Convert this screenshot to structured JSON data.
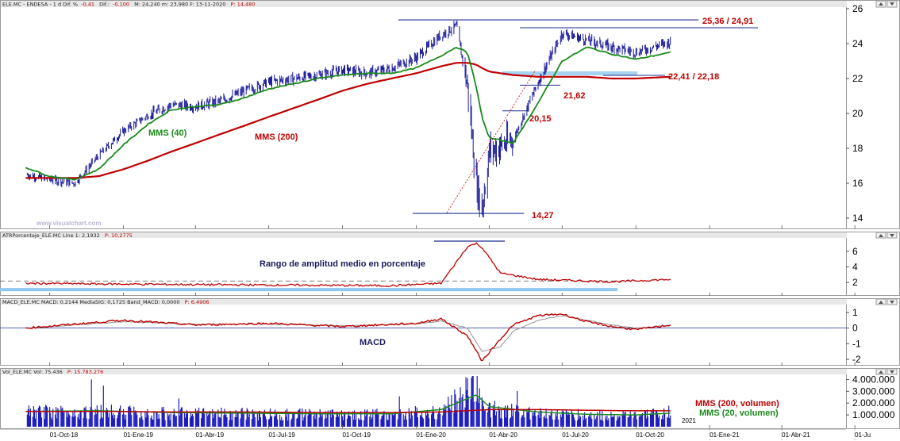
{
  "colors": {
    "background": "#ffffff",
    "grid_dash": "#c8c8d8",
    "price_bars": "#1f1f9f",
    "sma40": "#1a8a1a",
    "sma200": "#c00000",
    "annot_red": "#c00000",
    "annot_green": "#1a8a1a",
    "annot_navy": "#1a1a5e",
    "level_line": "#1f2f8f",
    "zone_fill": "#8ec8ef",
    "volume_bars": "#1f1fbf",
    "header_bg": "#e8e8e8",
    "panel_border": "#9a9a9a"
  },
  "icons": {
    "scroll_up": "scroll-up-icon",
    "scroll_down": "scroll-down-icon"
  },
  "headers": {
    "price": {
      "prefix": "ELE.MC - ENDESA - 1 d  Dif. %",
      "diff_pct": "-0,41",
      "diff_label": "Dif.:",
      "diff": "-0,100",
      "ohlc": "M: 24,240  m: 23,980  F: 13-11-2020",
      "p_label": "P: 14,480"
    },
    "atr": {
      "prefix": "ATRPorcentaje_ELE.MC  Line 1: 2,1932",
      "red": "P: 10,2775"
    },
    "macd": {
      "prefix": "MACD_ELE.MC  MACD: 0,2144  MediaSIG: 0,1725  Band_MACD: 0,0000",
      "red": "P: 6,4906"
    },
    "volume": {
      "prefix": "Vol_ELE.MC  Vol: 75.436",
      "red": "P: 15.783.276"
    }
  },
  "annotations": {
    "sma40": "MMS (40)",
    "sma200": "MMS (200)",
    "resistance": "25,36 / 24,91",
    "support_zone": "22,41 / 22,18",
    "level_2162": "21,62",
    "level_2015": "20,15",
    "low_1427": "14,27",
    "watermark": "www.visualchart.com",
    "atr_title": "Rango de amplitud medio en porcentaje",
    "macd_title": "MACD",
    "vol_sma200": "MMS (200, volumen)",
    "vol_sma20": "MMS (20, volumen)",
    "year_marker": "2021"
  },
  "chart_data": [
    {
      "type": "line",
      "panel": "price",
      "subtype": "ohlc_bars",
      "title": "ELE.MC - ENDESA - 1 d",
      "x_ticks": [
        "01-Oct-18",
        "01-Ene-19",
        "01-Abr-19",
        "01-Jul-19",
        "01-Oct-19",
        "01-Ene-20",
        "01-Abr-20",
        "01-Jul-20",
        "01-Oct-20",
        "01-Ene-21",
        "01-Abr-21",
        "01-Ju"
      ],
      "y_ticks": [
        14,
        16,
        18,
        20,
        22,
        24,
        26
      ],
      "ylim": [
        13.5,
        26.0
      ],
      "x": [
        "2018-09",
        "2018-10",
        "2018-11",
        "2018-12",
        "2019-01",
        "2019-02",
        "2019-03",
        "2019-04",
        "2019-05",
        "2019-06",
        "2019-07",
        "2019-08",
        "2019-09",
        "2019-10",
        "2019-11",
        "2019-12",
        "2020-01",
        "2020-02",
        "2020-02-20",
        "2020-03-05",
        "2020-03-16",
        "2020-03-23",
        "2020-04",
        "2020-05",
        "2020-06",
        "2020-07",
        "2020-08",
        "2020-09",
        "2020-10",
        "2020-11-13"
      ],
      "series": [
        {
          "name": "ELE.MC",
          "values": [
            16.5,
            16.2,
            16.0,
            17.6,
            19.0,
            19.9,
            20.5,
            20.4,
            20.7,
            21.3,
            21.8,
            22.0,
            22.2,
            22.5,
            22.3,
            22.6,
            23.2,
            24.5,
            25.0,
            21.5,
            16.0,
            14.5,
            17.8,
            18.5,
            21.8,
            24.6,
            24.2,
            23.8,
            23.5,
            24.1
          ]
        },
        {
          "name": "MMS (40)",
          "values": [
            16.9,
            16.4,
            16.2,
            16.8,
            18.2,
            19.4,
            20.2,
            20.4,
            20.5,
            20.9,
            21.4,
            21.7,
            22.0,
            22.2,
            22.3,
            22.3,
            22.6,
            23.3,
            23.8,
            23.5,
            21.5,
            19.8,
            18.6,
            18.3,
            20.6,
            23.0,
            23.8,
            23.4,
            23.1,
            23.5
          ]
        },
        {
          "name": "MMS (200)",
          "values": [
            16.3,
            16.3,
            16.3,
            16.4,
            16.8,
            17.3,
            17.8,
            18.3,
            18.8,
            19.3,
            19.8,
            20.3,
            20.8,
            21.3,
            21.7,
            22.0,
            22.3,
            22.7,
            22.9,
            22.9,
            22.8,
            22.6,
            22.4,
            22.2,
            22.1,
            22.1,
            22.1,
            22.0,
            22.0,
            22.1
          ]
        }
      ],
      "levels": [
        25.36,
        24.91,
        22.41,
        22.18,
        21.62,
        20.15,
        14.27
      ]
    },
    {
      "type": "line",
      "panel": "atr",
      "title": "ATRPorcentaje_ELE.MC",
      "y_ticks": [
        2,
        4,
        6
      ],
      "ylim": [
        0.5,
        7.5
      ],
      "x": [
        "2018-09",
        "2019-01",
        "2019-06",
        "2019-12",
        "2020-02",
        "2020-03-05",
        "2020-03-16",
        "2020-03-23",
        "2020-04-15",
        "2020-06",
        "2020-09",
        "2020-11-13"
      ],
      "series": [
        {
          "name": "ATR %",
          "values": [
            1.9,
            1.8,
            1.7,
            1.6,
            1.9,
            6.6,
            7.0,
            6.5,
            3.2,
            2.4,
            2.1,
            2.4
          ]
        }
      ],
      "reference_line": 2.2
    },
    {
      "type": "line",
      "panel": "macd",
      "title": "MACD",
      "y_ticks": [
        -2,
        -1,
        0,
        1
      ],
      "ylim": [
        -2.3,
        1.4
      ],
      "x": [
        "2018-09",
        "2019-01",
        "2019-04",
        "2019-07",
        "2019-10",
        "2020-01",
        "2020-02",
        "2020-03-05",
        "2020-03-23",
        "2020-04-15",
        "2020-05",
        "2020-06",
        "2020-07",
        "2020-08",
        "2020-09",
        "2020-10",
        "2020-11-13"
      ],
      "series": [
        {
          "name": "MACD",
          "values": [
            0.0,
            0.5,
            0.2,
            0.3,
            0.1,
            0.3,
            0.6,
            -0.5,
            -2.1,
            -0.7,
            0.2,
            0.8,
            0.9,
            0.4,
            0.1,
            -0.1,
            0.2
          ]
        },
        {
          "name": "MediaSIG",
          "values": [
            0.0,
            0.4,
            0.25,
            0.25,
            0.15,
            0.25,
            0.45,
            0.0,
            -1.5,
            -1.2,
            -0.2,
            0.5,
            0.8,
            0.5,
            0.2,
            0.0,
            0.17
          ]
        }
      ]
    },
    {
      "type": "bar",
      "panel": "volume",
      "title": "Vol_ELE.MC",
      "y_ticks": [
        "1.000.000",
        "2.000.000",
        "3.000.000",
        "4.000.000"
      ],
      "ylim": [
        0,
        4300000
      ],
      "x": [
        "2018-09",
        "2018-12",
        "2019-03",
        "2019-06",
        "2019-09",
        "2019-12",
        "2020-02",
        "2020-03-16",
        "2020-04",
        "2020-06",
        "2020-08",
        "2020-10",
        "2020-11-13"
      ],
      "series": [
        {
          "name": "Vol",
          "values": [
            1300000,
            1400000,
            1200000,
            1150000,
            1100000,
            1100000,
            1400000,
            3700000,
            1600000,
            1250000,
            1050000,
            1000000,
            1300000
          ]
        },
        {
          "name": "MMS (200, volumen)",
          "values": [
            1300000,
            1300000,
            1250000,
            1250000,
            1200000,
            1200000,
            1250000,
            1400000,
            1450000,
            1450000,
            1400000,
            1350000,
            1350000
          ]
        },
        {
          "name": "MMS (20, volumen)",
          "values": [
            1300000,
            1350000,
            1200000,
            1150000,
            1100000,
            1100000,
            1450000,
            2700000,
            1700000,
            1250000,
            1050000,
            1000000,
            1150000
          ]
        }
      ]
    }
  ]
}
